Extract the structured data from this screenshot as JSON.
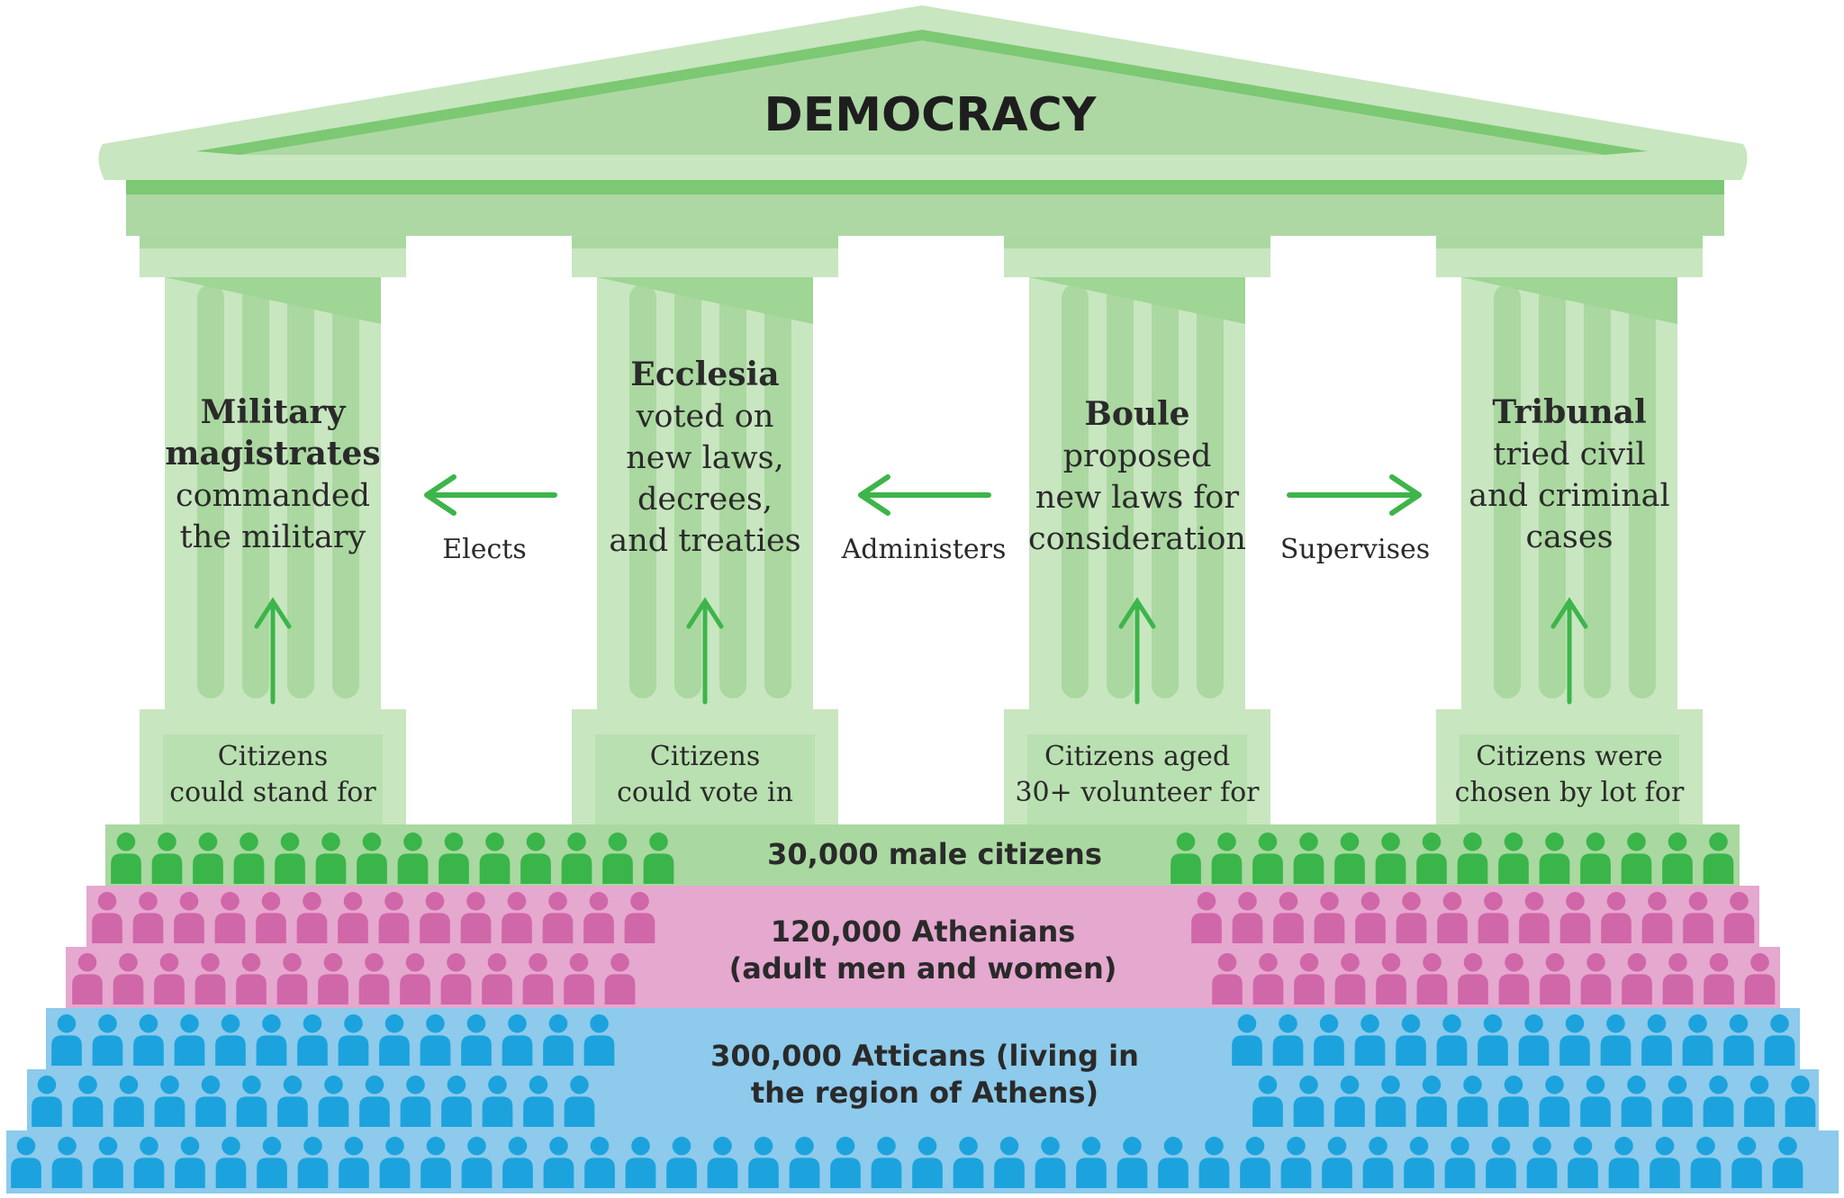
{
  "title": "DEMOCRACY",
  "colors": {
    "pediment_light": "#c8e6c0",
    "pediment_mid": "#add8a4",
    "stripe": "#7cc873",
    "column": "#c8e6c0",
    "column_flute": "#aad8a0",
    "arrow": "#3db54a",
    "citizens_band": "#a9d8a0",
    "citizens_icon": "#3ab54a",
    "athenians_band": "#e5a8cf",
    "athenians_icon": "#d067a8",
    "atticans_band": "#8dcaec",
    "atticans_icon": "#1ca3dd",
    "text": "#2a2a2a"
  },
  "columns": [
    {
      "heading": [
        "Military",
        "magistrates"
      ],
      "body": [
        "commanded",
        "the military"
      ],
      "base": [
        "Citizens",
        "could stand for"
      ]
    },
    {
      "heading": [
        "Ecclesia"
      ],
      "body": [
        "voted on",
        "new laws,",
        "decrees,",
        "and treaties"
      ],
      "base": [
        "Citizens",
        "could vote in"
      ]
    },
    {
      "heading": [
        "Boule"
      ],
      "body": [
        "proposed",
        "new laws for",
        "consideration"
      ],
      "base": [
        "Citizens aged",
        "30+ volunteer for"
      ]
    },
    {
      "heading": [
        "Tribunal"
      ],
      "body": [
        "tried civil",
        "and criminal",
        "cases"
      ],
      "base": [
        "Citizens were",
        "chosen by lot for"
      ]
    }
  ],
  "relations": [
    {
      "label": "Elects",
      "direction": "left"
    },
    {
      "label": "Administers",
      "direction": "left"
    },
    {
      "label": "Supervises",
      "direction": "right"
    }
  ],
  "tiers": [
    {
      "label": [
        "30,000 male citizens"
      ]
    },
    {
      "label": [
        "120,000 Athenians",
        "(adult men and women)"
      ]
    },
    {
      "label": [
        "300,000 Atticans (living in",
        "the region of Athens)"
      ]
    }
  ],
  "icons": {
    "person": "person-icon",
    "arrow": "arrow-icon"
  }
}
